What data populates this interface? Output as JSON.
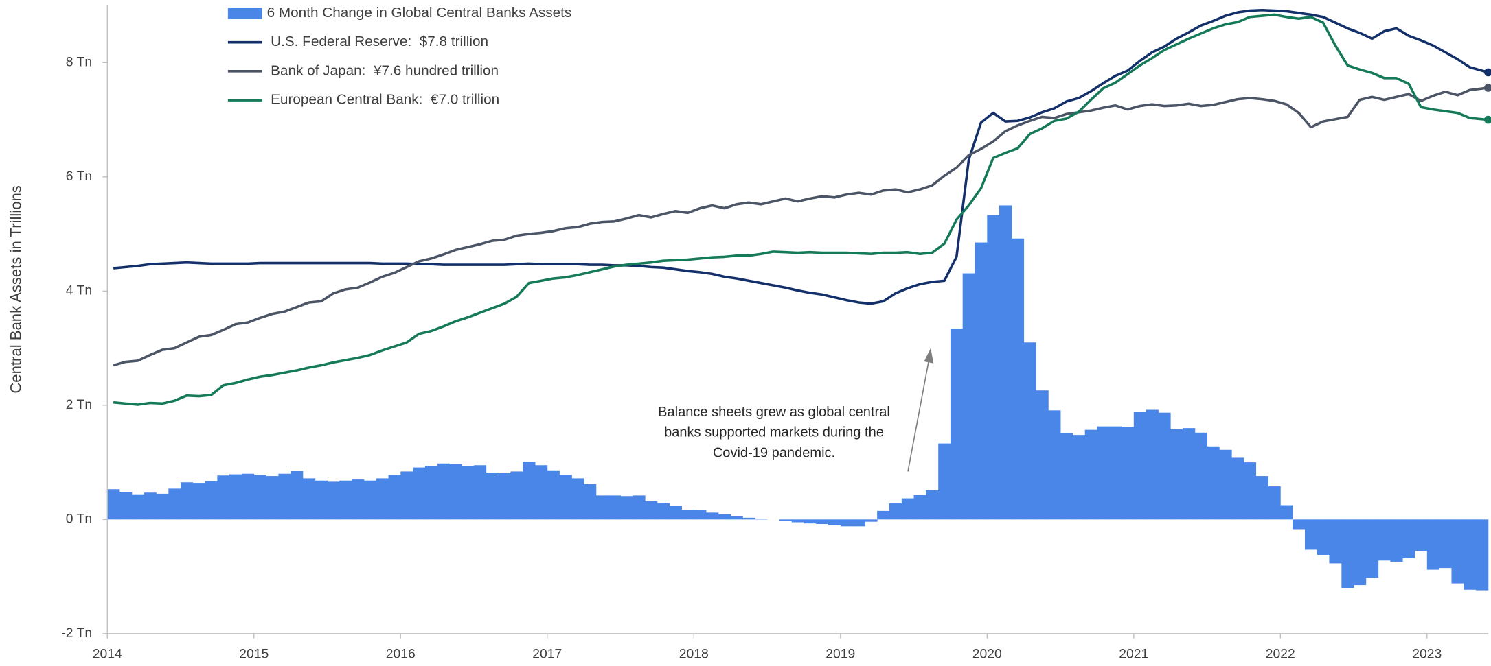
{
  "chart_data": {
    "type": "combo",
    "y_label": "Central Bank Assets in Trillions",
    "annotation": [
      "Balance sheets grew as global central",
      "banks supported markets during the",
      "Covid-19 pandemic."
    ],
    "legend": "upper-left",
    "xlim": [
      2014,
      2023.417
    ],
    "xticks": [
      2014,
      2015,
      2016,
      2017,
      2018,
      2019,
      2020,
      2021,
      2022,
      2023
    ],
    "ylim": [
      -2,
      9
    ],
    "yticks": [
      {
        "value": -2,
        "label": "-2 Tn"
      },
      {
        "value": 0,
        "label": "0 Tn"
      },
      {
        "value": 2,
        "label": "2 Tn"
      },
      {
        "value": 4,
        "label": "4 Tn"
      },
      {
        "value": 6,
        "label": "6 Tn"
      },
      {
        "value": 8,
        "label": "8 Tn"
      }
    ],
    "x": [
      2014,
      2014.083,
      2014.167,
      2014.25,
      2014.333,
      2014.417,
      2014.5,
      2014.583,
      2014.667,
      2014.75,
      2014.833,
      2014.917,
      2015,
      2015.083,
      2015.167,
      2015.25,
      2015.333,
      2015.417,
      2015.5,
      2015.583,
      2015.667,
      2015.75,
      2015.833,
      2015.917,
      2016,
      2016.083,
      2016.167,
      2016.25,
      2016.333,
      2016.417,
      2016.5,
      2016.583,
      2016.667,
      2016.75,
      2016.833,
      2016.917,
      2017,
      2017.083,
      2017.167,
      2017.25,
      2017.333,
      2017.417,
      2017.5,
      2017.583,
      2017.667,
      2017.75,
      2017.833,
      2017.917,
      2018,
      2018.083,
      2018.167,
      2018.25,
      2018.333,
      2018.417,
      2018.5,
      2018.583,
      2018.667,
      2018.75,
      2018.833,
      2018.917,
      2019,
      2019.083,
      2019.167,
      2019.25,
      2019.333,
      2019.417,
      2019.5,
      2019.583,
      2019.667,
      2019.75,
      2019.833,
      2019.917,
      2020,
      2020.083,
      2020.167,
      2020.25,
      2020.333,
      2020.417,
      2020.5,
      2020.583,
      2020.667,
      2020.75,
      2020.833,
      2020.917,
      2021,
      2021.083,
      2021.167,
      2021.25,
      2021.333,
      2021.417,
      2021.5,
      2021.583,
      2021.667,
      2021.75,
      2021.833,
      2021.917,
      2022,
      2022.083,
      2022.167,
      2022.25,
      2022.333,
      2022.417,
      2022.5,
      2022.583,
      2022.667,
      2022.75,
      2022.833,
      2022.917,
      2023,
      2023.083,
      2023.167,
      2023.25,
      2023.333
    ],
    "series": [
      {
        "name": "6 Month Change in Global Central Banks Assets",
        "type": "bar",
        "color": "#4a86e8",
        "values": [
          0.53,
          0.48,
          0.44,
          0.47,
          0.45,
          0.54,
          0.65,
          0.64,
          0.67,
          0.77,
          0.79,
          0.8,
          0.78,
          0.76,
          0.8,
          0.85,
          0.72,
          0.68,
          0.66,
          0.68,
          0.7,
          0.68,
          0.72,
          0.78,
          0.84,
          0.91,
          0.94,
          0.98,
          0.97,
          0.94,
          0.95,
          0.82,
          0.81,
          0.84,
          1.01,
          0.95,
          0.86,
          0.78,
          0.72,
          0.62,
          0.42,
          0.42,
          0.41,
          0.42,
          0.32,
          0.28,
          0.24,
          0.17,
          0.16,
          0.12,
          0.09,
          0.06,
          0.03,
          0.01,
          0.0,
          -0.03,
          -0.05,
          -0.07,
          -0.08,
          -0.1,
          -0.12,
          -0.12,
          -0.04,
          0.15,
          0.28,
          0.37,
          0.43,
          0.51,
          1.33,
          3.34,
          4.31,
          4.85,
          5.33,
          5.5,
          4.92,
          3.1,
          2.26,
          1.91,
          1.51,
          1.48,
          1.57,
          1.63,
          1.63,
          1.62,
          1.89,
          1.92,
          1.87,
          1.58,
          1.6,
          1.52,
          1.28,
          1.22,
          1.08,
          1.0,
          0.76,
          0.58,
          0.25,
          -0.17,
          -0.53,
          -0.62,
          -0.77,
          -1.2,
          -1.15,
          -1.02,
          -0.72,
          -0.74,
          -0.68,
          -0.55,
          -0.88,
          -0.85,
          -1.12,
          -1.23,
          -1.24
        ]
      },
      {
        "name": "U.S. Federal Reserve:  $7.8 trillion",
        "type": "line",
        "color": "#13306a",
        "values": [
          4.4,
          4.42,
          4.44,
          4.47,
          4.48,
          4.49,
          4.5,
          4.49,
          4.48,
          4.48,
          4.48,
          4.48,
          4.49,
          4.49,
          4.49,
          4.49,
          4.49,
          4.49,
          4.49,
          4.49,
          4.49,
          4.49,
          4.48,
          4.48,
          4.48,
          4.47,
          4.47,
          4.46,
          4.46,
          4.46,
          4.46,
          4.46,
          4.46,
          4.47,
          4.48,
          4.47,
          4.47,
          4.47,
          4.47,
          4.46,
          4.46,
          4.45,
          4.45,
          4.44,
          4.42,
          4.41,
          4.38,
          4.35,
          4.33,
          4.3,
          4.25,
          4.22,
          4.18,
          4.14,
          4.1,
          4.06,
          4.01,
          3.97,
          3.94,
          3.89,
          3.84,
          3.8,
          3.78,
          3.82,
          3.96,
          4.05,
          4.12,
          4.16,
          4.18,
          4.6,
          6.3,
          6.95,
          7.12,
          6.97,
          6.98,
          7.04,
          7.13,
          7.2,
          7.32,
          7.38,
          7.5,
          7.64,
          7.77,
          7.86,
          8.03,
          8.18,
          8.28,
          8.42,
          8.53,
          8.65,
          8.73,
          8.82,
          8.88,
          8.91,
          8.92,
          8.91,
          8.9,
          8.87,
          8.84,
          8.8,
          8.7,
          8.6,
          8.52,
          8.42,
          8.55,
          8.6,
          8.47,
          8.39,
          8.3,
          8.18,
          8.06,
          7.92,
          7.83
        ]
      },
      {
        "name": "Bank of Japan:  ¥7.6 hundred trillion",
        "type": "line",
        "color": "#4b5566",
        "values": [
          2.7,
          2.76,
          2.78,
          2.88,
          2.97,
          3.0,
          3.1,
          3.2,
          3.23,
          3.32,
          3.42,
          3.45,
          3.53,
          3.6,
          3.64,
          3.72,
          3.8,
          3.82,
          3.96,
          4.03,
          4.06,
          4.15,
          4.25,
          4.32,
          4.42,
          4.52,
          4.57,
          4.64,
          4.72,
          4.77,
          4.82,
          4.88,
          4.9,
          4.97,
          5.0,
          5.02,
          5.05,
          5.1,
          5.12,
          5.18,
          5.21,
          5.22,
          5.27,
          5.33,
          5.29,
          5.35,
          5.4,
          5.37,
          5.45,
          5.5,
          5.45,
          5.52,
          5.55,
          5.52,
          5.57,
          5.62,
          5.57,
          5.62,
          5.66,
          5.64,
          5.69,
          5.72,
          5.69,
          5.76,
          5.78,
          5.73,
          5.78,
          5.85,
          6.02,
          6.16,
          6.38,
          6.49,
          6.62,
          6.8,
          6.9,
          6.98,
          7.05,
          7.03,
          7.1,
          7.13,
          7.16,
          7.21,
          7.25,
          7.18,
          7.24,
          7.27,
          7.24,
          7.25,
          7.28,
          7.24,
          7.26,
          7.31,
          7.36,
          7.38,
          7.36,
          7.33,
          7.27,
          7.12,
          6.87,
          6.97,
          7.01,
          7.05,
          7.35,
          7.4,
          7.35,
          7.4,
          7.45,
          7.33,
          7.42,
          7.49,
          7.43,
          7.52,
          7.56
        ]
      },
      {
        "name": "European Central Bank:  €7.0 trillion",
        "type": "line",
        "color": "#157a5a",
        "values": [
          2.05,
          2.03,
          2.01,
          2.04,
          2.03,
          2.08,
          2.17,
          2.16,
          2.18,
          2.35,
          2.39,
          2.45,
          2.5,
          2.53,
          2.57,
          2.61,
          2.66,
          2.7,
          2.75,
          2.79,
          2.83,
          2.88,
          2.96,
          3.03,
          3.1,
          3.25,
          3.3,
          3.38,
          3.47,
          3.54,
          3.62,
          3.7,
          3.78,
          3.9,
          4.14,
          4.18,
          4.22,
          4.24,
          4.28,
          4.33,
          4.38,
          4.43,
          4.46,
          4.48,
          4.5,
          4.53,
          4.54,
          4.55,
          4.57,
          4.59,
          4.6,
          4.62,
          4.62,
          4.65,
          4.69,
          4.68,
          4.67,
          4.68,
          4.67,
          4.67,
          4.67,
          4.66,
          4.65,
          4.67,
          4.67,
          4.68,
          4.65,
          4.67,
          4.83,
          5.25,
          5.5,
          5.8,
          6.33,
          6.42,
          6.5,
          6.75,
          6.85,
          6.98,
          7.02,
          7.14,
          7.35,
          7.55,
          7.65,
          7.8,
          7.95,
          8.08,
          8.22,
          8.32,
          8.42,
          8.51,
          8.6,
          8.67,
          8.71,
          8.8,
          8.82,
          8.84,
          8.8,
          8.77,
          8.8,
          8.7,
          8.3,
          7.95,
          7.88,
          7.82,
          7.73,
          7.73,
          7.63,
          7.22,
          7.18,
          7.15,
          7.12,
          7.03,
          7.0
        ]
      }
    ]
  }
}
